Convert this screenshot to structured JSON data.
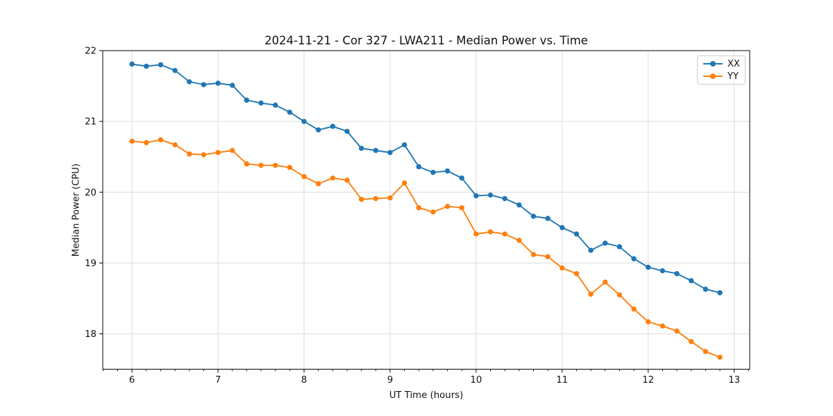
{
  "figure": {
    "background": "#ffffff",
    "text_color": "#111111",
    "grid_color": "#dcdcdc",
    "spine_color": "#000000",
    "legend_border_color": "#cccccc"
  },
  "chart_data": {
    "type": "line",
    "title": "2024-11-21 - Cor 327 - LWA211 - Median Power vs. Time",
    "xlabel": "UT Time (hours)",
    "ylabel": "Median Power (CPU)",
    "xlim": [
      5.66,
      13.18
    ],
    "ylim": [
      17.5,
      22.0
    ],
    "x_ticks": [
      6,
      7,
      8,
      9,
      10,
      11,
      12,
      13
    ],
    "y_ticks": [
      18,
      19,
      20,
      21,
      22
    ],
    "x_minor_step": 0.166667,
    "grid": true,
    "legend_position": "upper right",
    "marker": "circle",
    "x": [
      6.0,
      6.1667,
      6.3333,
      6.5,
      6.6667,
      6.8333,
      7.0,
      7.1667,
      7.3333,
      7.5,
      7.6667,
      7.8333,
      8.0,
      8.1667,
      8.3333,
      8.5,
      8.6667,
      8.8333,
      9.0,
      9.1667,
      9.3333,
      9.5,
      9.6667,
      9.8333,
      10.0,
      10.1667,
      10.3333,
      10.5,
      10.6667,
      10.8333,
      11.0,
      11.1667,
      11.3333,
      11.5,
      11.6667,
      11.8333,
      12.0,
      12.1667,
      12.3333,
      12.5,
      12.6667,
      12.8333
    ],
    "series": [
      {
        "name": "XX",
        "color": "#1f77b4",
        "values": [
          21.81,
          21.78,
          21.8,
          21.72,
          21.56,
          21.52,
          21.54,
          21.51,
          21.3,
          21.26,
          21.23,
          21.13,
          21.0,
          20.88,
          20.93,
          20.86,
          20.62,
          20.59,
          20.56,
          20.67,
          20.36,
          20.28,
          20.3,
          20.2,
          19.95,
          19.96,
          19.91,
          19.82,
          19.66,
          19.63,
          19.5,
          19.41,
          19.18,
          19.28,
          19.23,
          19.06,
          18.94,
          18.89,
          18.85,
          18.75,
          18.63,
          18.58
        ]
      },
      {
        "name": "YY",
        "color": "#ff7f0e",
        "values": [
          20.72,
          20.7,
          20.74,
          20.67,
          20.54,
          20.53,
          20.56,
          20.59,
          20.4,
          20.38,
          20.38,
          20.35,
          20.22,
          20.12,
          20.2,
          20.17,
          19.9,
          19.91,
          19.92,
          20.13,
          19.78,
          19.72,
          19.8,
          19.78,
          19.41,
          19.44,
          19.41,
          19.32,
          19.12,
          19.09,
          18.93,
          18.85,
          18.56,
          18.73,
          18.55,
          18.35,
          18.17,
          18.11,
          18.04,
          17.89,
          17.75,
          17.67
        ]
      }
    ]
  }
}
